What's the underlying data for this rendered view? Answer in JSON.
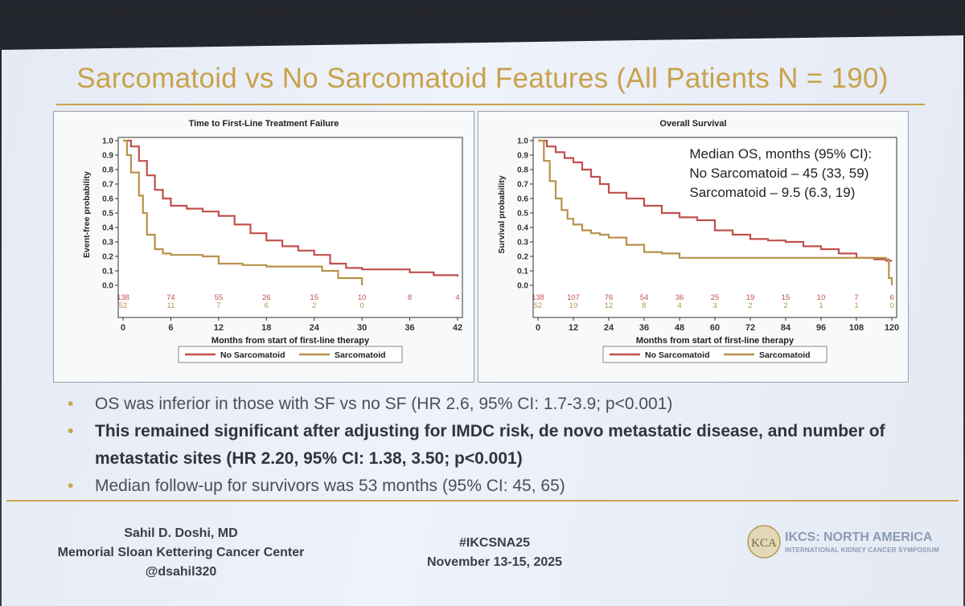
{
  "slide": {
    "title": "Sarcomatoid vs No Sarcomatoid Features (All Patients N = 190)",
    "bullets": [
      {
        "text": "OS was inferior in those with SF vs no SF (HR 2.6, 95% CI: 1.7-3.9; p<0.001)",
        "bold": false
      },
      {
        "text": "This remained significant after adjusting for IMDC risk, de novo metastatic disease, and number of metastatic sites (HR 2.20, 95% CI: 1.38, 3.50; p<0.001)",
        "bold": true
      },
      {
        "text": "Median follow-up for survivors was 53 months (95% CI: 45, 65)",
        "bold": false
      }
    ],
    "footer": {
      "author_name": "Sahil D. Doshi, MD",
      "author_institution": "Memorial Sloan Kettering Cancer Center",
      "author_handle": "@dsahil320",
      "hashtag": "#IKCSNA25",
      "dates": "November 13-15, 2025",
      "org_name": "IKCS: NORTH AMERICA",
      "org_subtitle": "INTERNATIONAL KIDNEY CANCER SYMPOSIUM",
      "logo_text": "KCA"
    },
    "colors": {
      "title": "#c8a24a",
      "accent_gold": "#c9a44c",
      "no_sarcomatoid": "#c0504d",
      "sarcomatoid": "#b8924a"
    }
  },
  "chart_data": [
    {
      "type": "line",
      "title": "Time to First-Line Treatment Failure",
      "xlabel": "Months from start of first-line therapy",
      "ylabel": "Event-free probability",
      "xlim": [
        0,
        42
      ],
      "ylim": [
        0,
        1.0
      ],
      "x_ticks": [
        0,
        6,
        12,
        18,
        24,
        30,
        36,
        42
      ],
      "y_ticks": [
        0.0,
        0.1,
        0.2,
        0.3,
        0.4,
        0.5,
        0.6,
        0.7,
        0.8,
        0.9,
        1.0
      ],
      "legend": "bottom",
      "series": [
        {
          "name": "No Sarcomatoid",
          "color": "#c0504d",
          "x": [
            0,
            1,
            2,
            3,
            4,
            5,
            6,
            8,
            10,
            12,
            14,
            16,
            18,
            20,
            22,
            24,
            26,
            28,
            30,
            33,
            36,
            39,
            42
          ],
          "y": [
            1.0,
            0.96,
            0.86,
            0.76,
            0.66,
            0.6,
            0.55,
            0.53,
            0.51,
            0.48,
            0.42,
            0.36,
            0.31,
            0.27,
            0.24,
            0.21,
            0.15,
            0.12,
            0.11,
            0.11,
            0.09,
            0.07,
            0.06
          ],
          "at_risk": [
            138,
            74,
            55,
            26,
            15,
            10,
            8,
            4
          ]
        },
        {
          "name": "Sarcomatoid",
          "color": "#b8924a",
          "x": [
            0,
            0.5,
            1,
            2,
            2.5,
            3,
            4,
            5,
            6,
            8,
            10,
            12,
            15,
            18,
            21,
            24,
            25,
            27,
            30
          ],
          "y": [
            1.0,
            0.9,
            0.78,
            0.62,
            0.5,
            0.35,
            0.25,
            0.22,
            0.21,
            0.21,
            0.2,
            0.15,
            0.14,
            0.13,
            0.13,
            0.13,
            0.1,
            0.05,
            0.0
          ],
          "at_risk": [
            52,
            11,
            7,
            6,
            2,
            0
          ]
        }
      ]
    },
    {
      "type": "line",
      "title": "Overall Survival",
      "xlabel": "Months from start of first-line therapy",
      "ylabel": "Survival probability",
      "xlim": [
        0,
        120
      ],
      "ylim": [
        0,
        1.0
      ],
      "x_ticks": [
        0,
        12,
        24,
        36,
        48,
        60,
        72,
        84,
        96,
        108,
        120
      ],
      "y_ticks": [
        0.0,
        0.1,
        0.2,
        0.3,
        0.4,
        0.5,
        0.6,
        0.7,
        0.8,
        0.9,
        1.0
      ],
      "legend": "bottom",
      "annotation": [
        "Median OS, months (95% CI):",
        "No Sarcomatoid – 45 (33, 59)",
        "Sarcomatoid – 9.5 (6.3, 19)"
      ],
      "series": [
        {
          "name": "No Sarcomatoid",
          "color": "#c0504d",
          "x": [
            0,
            3,
            6,
            9,
            12,
            15,
            18,
            21,
            24,
            30,
            36,
            42,
            48,
            54,
            60,
            66,
            72,
            78,
            84,
            90,
            96,
            102,
            108,
            114,
            118,
            120
          ],
          "y": [
            1.0,
            0.96,
            0.92,
            0.88,
            0.85,
            0.8,
            0.75,
            0.7,
            0.64,
            0.6,
            0.55,
            0.5,
            0.47,
            0.45,
            0.38,
            0.35,
            0.32,
            0.31,
            0.3,
            0.27,
            0.25,
            0.22,
            0.19,
            0.18,
            0.17,
            0.17
          ],
          "at_risk": [
            138,
            107,
            76,
            54,
            36,
            25,
            19,
            15,
            10,
            7,
            6
          ]
        },
        {
          "name": "Sarcomatoid",
          "color": "#b8924a",
          "x": [
            0,
            2,
            4,
            6,
            8,
            10,
            12,
            15,
            18,
            21,
            24,
            30,
            36,
            42,
            48,
            60,
            72,
            84,
            96,
            108,
            114,
            118,
            119,
            120
          ],
          "y": [
            1.0,
            0.86,
            0.72,
            0.6,
            0.52,
            0.46,
            0.42,
            0.38,
            0.36,
            0.35,
            0.33,
            0.28,
            0.23,
            0.22,
            0.19,
            0.19,
            0.19,
            0.19,
            0.19,
            0.19,
            0.19,
            0.18,
            0.05,
            0.0
          ],
          "at_risk": [
            52,
            19,
            12,
            8,
            4,
            3,
            2,
            2,
            1,
            1,
            0
          ]
        }
      ]
    }
  ]
}
